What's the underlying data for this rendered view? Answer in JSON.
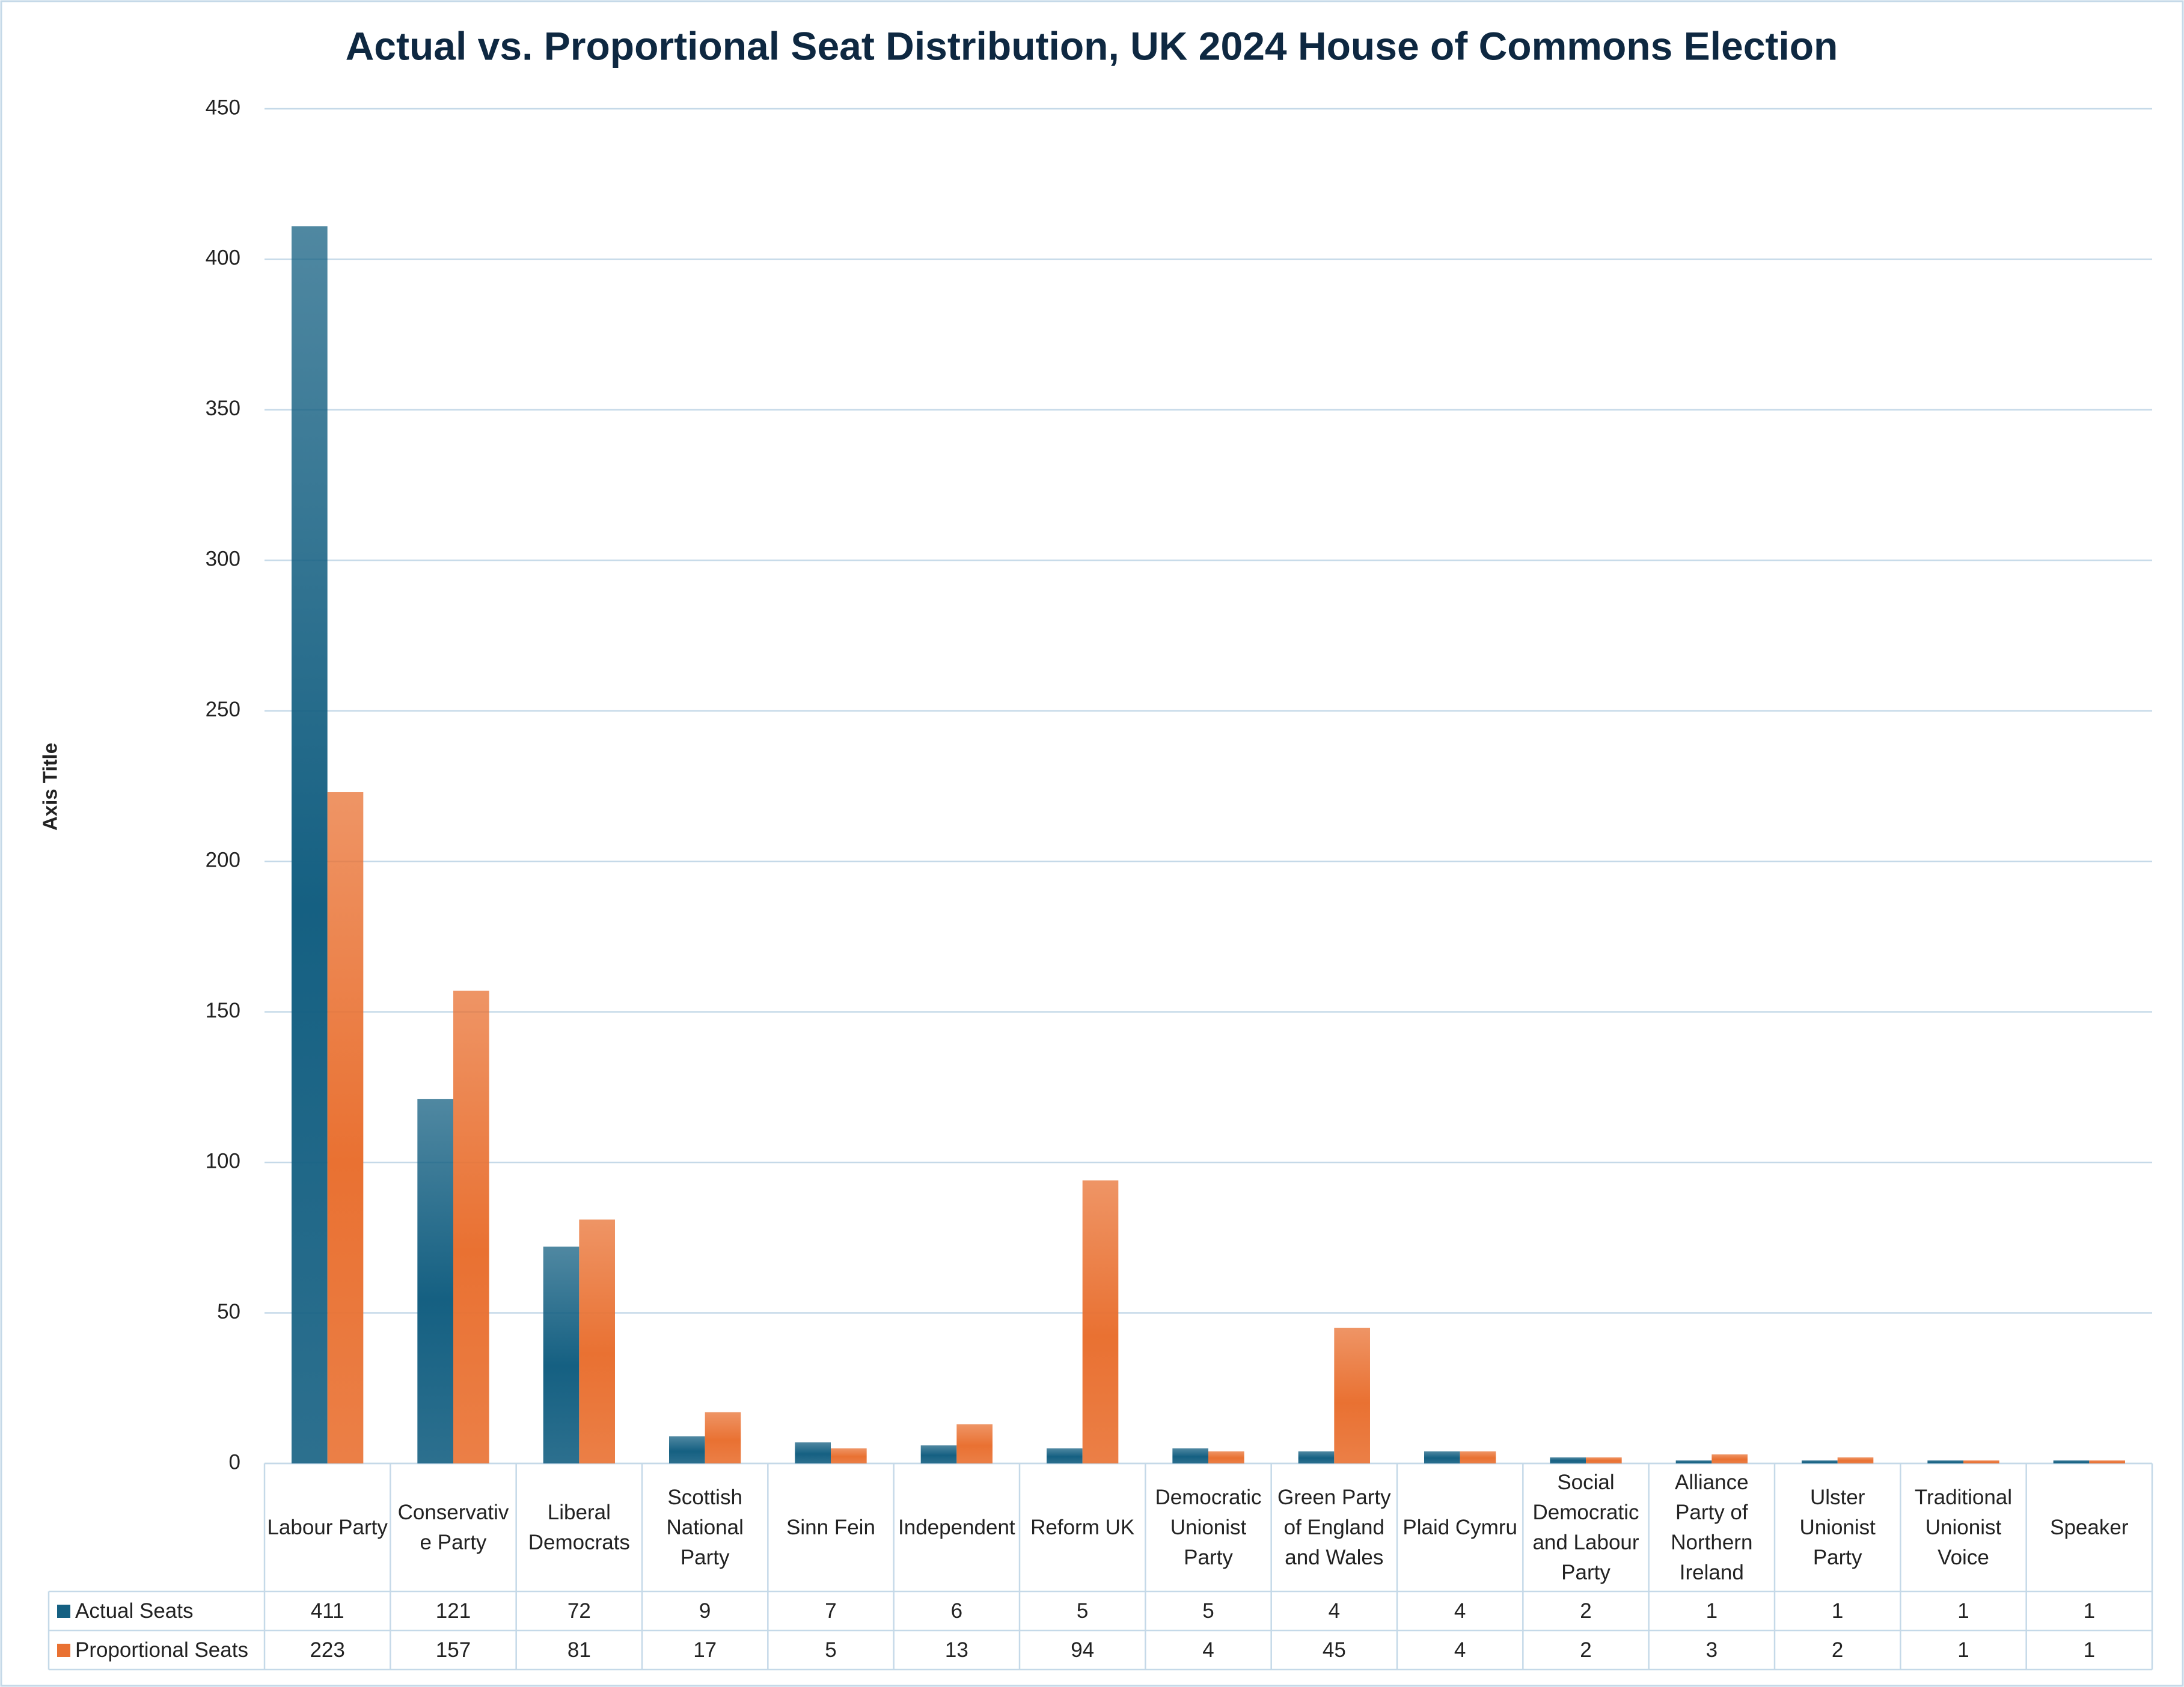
{
  "chart_data": {
    "type": "bar",
    "title": "Actual vs. Proportional Seat Distribution, UK 2024 House of Commons Election",
    "y_axis_label": "Axis Title",
    "categories": [
      "Labour Party",
      "Conservative Party",
      "Liberal Democrats",
      "Scottish National Party",
      "Sinn Fein",
      "Independent",
      "Reform UK",
      "Democratic Unionist Party",
      "Green Party of England and Wales",
      "Plaid Cymru",
      "Social Democratic and Labour Party",
      "Alliance Party of Northern Ireland",
      "Ulster Unionist Party",
      "Traditional Unionist Voice",
      "Speaker"
    ],
    "series": [
      {
        "name": "Actual Seats",
        "color": "#156082",
        "values": [
          411,
          121,
          72,
          9,
          7,
          6,
          5,
          5,
          4,
          4,
          2,
          1,
          1,
          1,
          1
        ]
      },
      {
        "name": "Proportional Seats",
        "color": "#e97132",
        "values": [
          223,
          157,
          81,
          17,
          5,
          13,
          94,
          4,
          45,
          4,
          2,
          3,
          2,
          1,
          1
        ]
      }
    ],
    "ylim": [
      0,
      450
    ],
    "yticks": [
      0,
      50,
      100,
      150,
      200,
      250,
      300,
      350,
      400,
      450
    ],
    "grid": true
  }
}
